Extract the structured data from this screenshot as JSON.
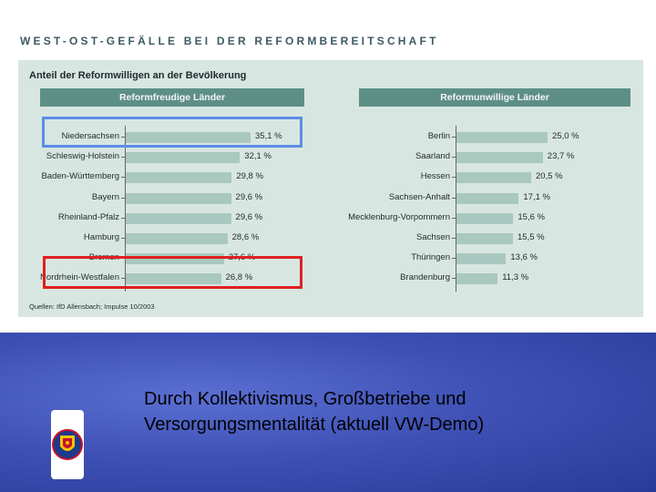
{
  "headline": "WEST-OST-GEFÄLLE BEI DER REFORMBEREITSCHAFT",
  "chart_data": [
    {
      "type": "bar",
      "title": "Anteil der Reformwilligen an der Bevölkerung",
      "panel": "Reformfreudige Länder",
      "categories": [
        "Niedersachsen",
        "Schleswig-Holstein",
        "Baden-Württemberg",
        "Bayern",
        "Rheinland-Pfalz",
        "Hamburg",
        "Bremen",
        "Nordrhein-Westfalen"
      ],
      "values": [
        35.1,
        32.1,
        29.8,
        29.6,
        29.6,
        28.6,
        27.6,
        26.8
      ],
      "labels": [
        "35,1 %",
        "32,1 %",
        "29,8 %",
        "29,6 %",
        "29,6 %",
        "28,6 %",
        "27,6 %",
        "26,8 %"
      ],
      "xlim": [
        0,
        35.1
      ],
      "highlight": [
        {
          "category": "Niedersachsen",
          "color": "#5b8ee6"
        },
        {
          "category": "Nordrhein-Westfalen",
          "color": "#e02020"
        }
      ]
    },
    {
      "type": "bar",
      "panel": "Reformunwillige Länder",
      "categories": [
        "Berlin",
        "Saarland",
        "Hessen",
        "Sachsen-Anhalt",
        "Mecklenburg-Vorpommern",
        "Sachsen",
        "Thüringen",
        "Brandenburg"
      ],
      "values": [
        25.0,
        23.7,
        20.5,
        17.1,
        15.6,
        15.5,
        13.6,
        11.3
      ],
      "labels": [
        "25,0 %",
        "23,7 %",
        "20,5 %",
        "17,1 %",
        "15,6 %",
        "15,5 %",
        "13,6 %",
        "11,3 %"
      ],
      "xlim": [
        0,
        25.0
      ]
    }
  ],
  "source": "Quellen: IfD Allensbach; Impulse 10/2003",
  "caption_line1": "Durch Kollektivismus, Großbetriebe und",
  "caption_line2": "Versorgungsmentalität (aktuell VW-Demo)",
  "logo_icon": "coat-of-arms-icon"
}
